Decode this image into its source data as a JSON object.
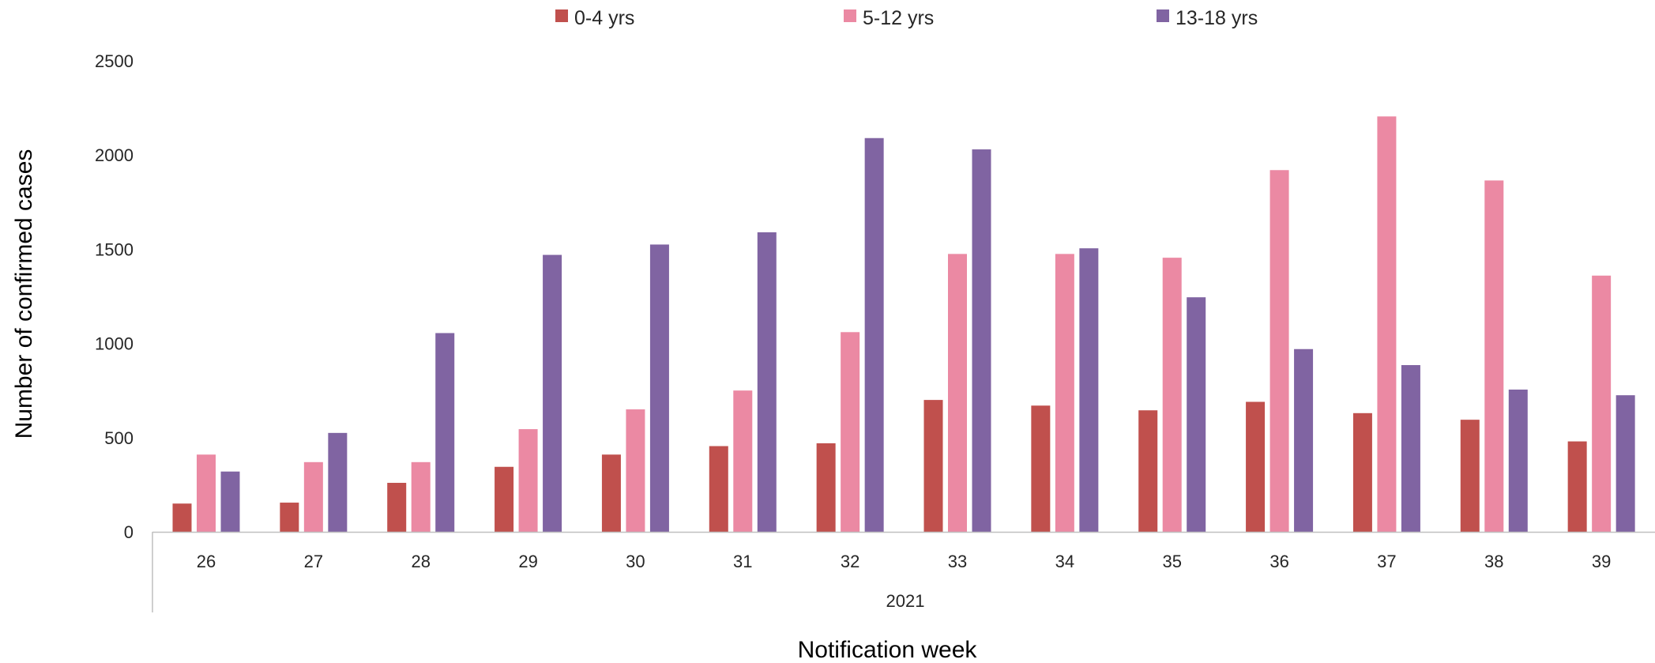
{
  "chart_data": {
    "type": "bar",
    "xlabel": "Notification week",
    "ylabel": "Number of confirmed cases",
    "group_label": "2021",
    "categories": [
      "26",
      "27",
      "28",
      "29",
      "30",
      "31",
      "32",
      "33",
      "34",
      "35",
      "36",
      "37",
      "38",
      "39"
    ],
    "ylim": [
      0,
      2500
    ],
    "yticks": [
      0,
      500,
      1000,
      1500,
      2000,
      2500
    ],
    "grid": false,
    "legend_position": "top",
    "series": [
      {
        "name": "0-4 yrs",
        "color": "#c0504d",
        "values": [
          150,
          155,
          260,
          345,
          410,
          455,
          470,
          700,
          670,
          645,
          690,
          630,
          595,
          480
        ]
      },
      {
        "name": "5-12 yrs",
        "color": "#eb89a3",
        "values": [
          410,
          370,
          370,
          545,
          650,
          750,
          1060,
          1475,
          1475,
          1455,
          1920,
          2205,
          1865,
          1360
        ]
      },
      {
        "name": "13-18 yrs",
        "color": "#8064a2",
        "values": [
          320,
          525,
          1055,
          1470,
          1525,
          1590,
          2090,
          2030,
          1505,
          1245,
          970,
          885,
          755,
          725
        ]
      }
    ]
  }
}
